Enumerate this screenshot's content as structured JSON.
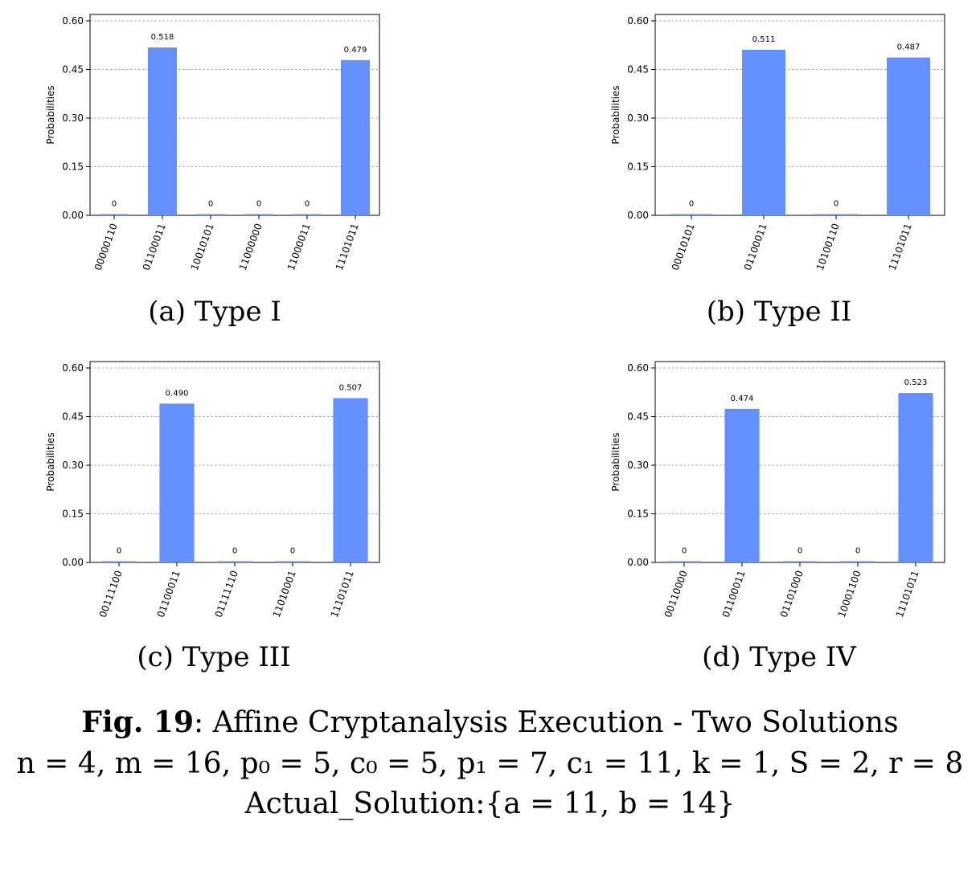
{
  "chart_data": [
    {
      "type": "bar",
      "subcaption": "(a) Type I",
      "ylabel": "Probabilities",
      "ylim": [
        0,
        0.6
      ],
      "yticks": [
        "0.00",
        "0.15",
        "0.30",
        "0.45",
        "0.60"
      ],
      "categories": [
        "00000110",
        "01100011",
        "10010101",
        "11000000",
        "11000011",
        "11101011"
      ],
      "values": [
        0,
        0.518,
        0,
        0,
        0,
        0.479
      ],
      "labels": [
        "0",
        "0.518",
        "0",
        "0",
        "0",
        "0.479"
      ],
      "grid": true,
      "bar_color": "#648fff"
    },
    {
      "type": "bar",
      "subcaption": "(b) Type II",
      "ylabel": "Probabilities",
      "ylim": [
        0,
        0.6
      ],
      "yticks": [
        "0.00",
        "0.15",
        "0.30",
        "0.45",
        "0.60"
      ],
      "categories": [
        "00010101",
        "01100011",
        "10100110",
        "11101011"
      ],
      "values": [
        0,
        0.511,
        0,
        0.487
      ],
      "labels": [
        "0",
        "0.511",
        "0",
        "0.487"
      ],
      "grid": true,
      "bar_color": "#648fff"
    },
    {
      "type": "bar",
      "subcaption": "(c) Type III",
      "ylabel": "Probabilities",
      "ylim": [
        0,
        0.6
      ],
      "yticks": [
        "0.00",
        "0.15",
        "0.30",
        "0.45",
        "0.60"
      ],
      "categories": [
        "00111100",
        "01100011",
        "01111110",
        "11010001",
        "11101011"
      ],
      "values": [
        0,
        0.49,
        0,
        0,
        0.507
      ],
      "labels": [
        "0",
        "0.490",
        "0",
        "0",
        "0.507"
      ],
      "grid": true,
      "bar_color": "#648fff"
    },
    {
      "type": "bar",
      "subcaption": "(d) Type IV",
      "ylabel": "Probabilities",
      "ylim": [
        0,
        0.6
      ],
      "yticks": [
        "0.00",
        "0.15",
        "0.30",
        "0.45",
        "0.60"
      ],
      "categories": [
        "00110000",
        "01100011",
        "01101000",
        "10001100",
        "11101011"
      ],
      "values": [
        0,
        0.474,
        0,
        0,
        0.523
      ],
      "labels": [
        "0",
        "0.474",
        "0",
        "0",
        "0.523"
      ],
      "grid": true,
      "bar_color": "#648fff"
    }
  ],
  "caption": {
    "fig_label": "Fig. 19",
    "title": ": Affine Cryptanalysis Execution - Two Solutions",
    "params": "n = 4, m = 16, p₀ = 5, c₀ = 5, p₁ = 7, c₁ = 11, k = 1, S = 2, r = 8",
    "solution": "Actual_Solution:{a = 11, b = 14}"
  }
}
